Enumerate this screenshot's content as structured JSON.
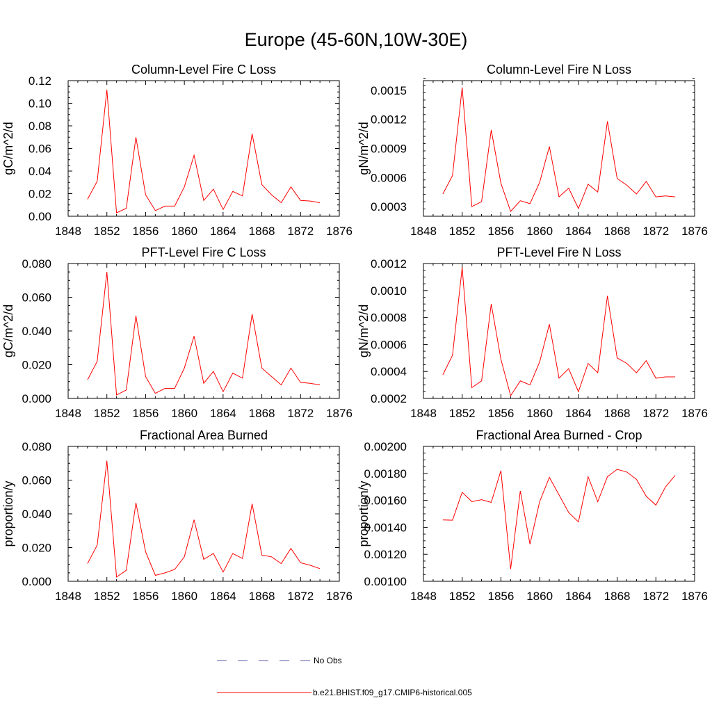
{
  "figure_title": "Europe (45-60N,10W-30E)",
  "line_color": "#ff0000",
  "obs_color": "#5a5aa8",
  "legend": [
    {
      "label": "No Obs",
      "style": "dashed",
      "color": "#5a5aa8"
    },
    {
      "label": "b.e21.BHIST.f09_g17.CMIP6-historical.005",
      "style": "solid",
      "color": "#ff0000"
    }
  ],
  "chart_data": [
    {
      "type": "line",
      "title": "Column-Level Fire C Loss",
      "ylabel": "gC/m^2/d",
      "xlim": [
        1848,
        1876
      ],
      "xticks": [
        1848,
        1852,
        1856,
        1860,
        1864,
        1868,
        1872,
        1876
      ],
      "xtick_labels": [
        "1848",
        "1852",
        "1856",
        "1860",
        "1864",
        "1868",
        "1872",
        "1876"
      ],
      "ylim": [
        0,
        0.12
      ],
      "yticks": [
        0,
        0.02,
        0.04,
        0.06,
        0.08,
        0.1,
        0.12
      ],
      "ytick_labels": [
        "0.00",
        "0.02",
        "0.04",
        "0.06",
        "0.08",
        "0.10",
        "0.12"
      ],
      "x": [
        1850,
        1851,
        1852,
        1853,
        1854,
        1855,
        1856,
        1857,
        1858,
        1859,
        1860,
        1861,
        1862,
        1863,
        1864,
        1865,
        1866,
        1867,
        1868,
        1869,
        1870,
        1871,
        1872,
        1873,
        1874
      ],
      "series": [
        {
          "name": "b.e21.BHIST.f09_g17.CMIP6-historical.005",
          "values": [
            0.015,
            0.031,
            0.112,
            0.003,
            0.007,
            0.07,
            0.019,
            0.005,
            0.009,
            0.009,
            0.026,
            0.054,
            0.014,
            0.024,
            0.006,
            0.022,
            0.018,
            0.073,
            0.028,
            0.019,
            0.012,
            0.026,
            0.014,
            0.0135,
            0.012
          ]
        }
      ]
    },
    {
      "type": "line",
      "title": "Column-Level Fire N Loss",
      "ylabel": "gN/m^2/d",
      "xlim": [
        1848,
        1876
      ],
      "xticks": [
        1848,
        1852,
        1856,
        1860,
        1864,
        1868,
        1872,
        1876
      ],
      "xtick_labels": [
        "1848",
        "1852",
        "1856",
        "1860",
        "1864",
        "1868",
        "1872",
        "1876"
      ],
      "ylim": [
        0.0002,
        0.0016
      ],
      "yticks": [
        0.0003,
        0.0006,
        0.0009,
        0.0012,
        0.0015
      ],
      "ytick_labels": [
        "0.0003",
        "0.0006",
        "0.0009",
        "0.0012",
        "0.0015"
      ],
      "x": [
        1850,
        1851,
        1852,
        1853,
        1854,
        1855,
        1856,
        1857,
        1858,
        1859,
        1860,
        1861,
        1862,
        1863,
        1864,
        1865,
        1866,
        1867,
        1868,
        1869,
        1870,
        1871,
        1872,
        1873,
        1874
      ],
      "series": [
        {
          "name": "b.e21.BHIST.f09_g17.CMIP6-historical.005",
          "values": [
            0.00043,
            0.00062,
            0.00153,
            0.0003,
            0.00035,
            0.00109,
            0.00054,
            0.00025,
            0.00036,
            0.00033,
            0.00055,
            0.00092,
            0.0004,
            0.00049,
            0.00028,
            0.00053,
            0.00045,
            0.00118,
            0.00059,
            0.00052,
            0.00043,
            0.00056,
            0.0004,
            0.00041,
            0.0004
          ]
        }
      ]
    },
    {
      "type": "line",
      "title": "PFT-Level Fire C Loss",
      "ylabel": "gC/m^2/d",
      "xlim": [
        1848,
        1876
      ],
      "xticks": [
        1848,
        1852,
        1856,
        1860,
        1864,
        1868,
        1872,
        1876
      ],
      "xtick_labels": [
        "1848",
        "1852",
        "1856",
        "1860",
        "1864",
        "1868",
        "1872",
        "1876"
      ],
      "ylim": [
        0,
        0.08
      ],
      "yticks": [
        0,
        0.02,
        0.04,
        0.06,
        0.08
      ],
      "ytick_labels": [
        "0.000",
        "0.020",
        "0.040",
        "0.060",
        "0.080"
      ],
      "x": [
        1850,
        1851,
        1852,
        1853,
        1854,
        1855,
        1856,
        1857,
        1858,
        1859,
        1860,
        1861,
        1862,
        1863,
        1864,
        1865,
        1866,
        1867,
        1868,
        1869,
        1870,
        1871,
        1872,
        1873,
        1874
      ],
      "series": [
        {
          "name": "b.e21.BHIST.f09_g17.CMIP6-historical.005",
          "values": [
            0.011,
            0.022,
            0.075,
            0.002,
            0.005,
            0.049,
            0.013,
            0.003,
            0.006,
            0.006,
            0.018,
            0.037,
            0.009,
            0.016,
            0.004,
            0.015,
            0.012,
            0.05,
            0.018,
            0.013,
            0.008,
            0.018,
            0.0095,
            0.009,
            0.008
          ]
        }
      ]
    },
    {
      "type": "line",
      "title": "PFT-Level Fire N Loss",
      "ylabel": "gN/m^2/d",
      "xlim": [
        1848,
        1876
      ],
      "xticks": [
        1848,
        1852,
        1856,
        1860,
        1864,
        1868,
        1872,
        1876
      ],
      "xtick_labels": [
        "1848",
        "1852",
        "1856",
        "1860",
        "1864",
        "1868",
        "1872",
        "1876"
      ],
      "ylim": [
        0.0002,
        0.0012
      ],
      "yticks": [
        0.0002,
        0.0004,
        0.0006,
        0.0008,
        0.001,
        0.0012
      ],
      "ytick_labels": [
        "0.0002",
        "0.0004",
        "0.0006",
        "0.0008",
        "0.0010",
        "0.0012"
      ],
      "x": [
        1850,
        1851,
        1852,
        1853,
        1854,
        1855,
        1856,
        1857,
        1858,
        1859,
        1860,
        1861,
        1862,
        1863,
        1864,
        1865,
        1866,
        1867,
        1868,
        1869,
        1870,
        1871,
        1872,
        1873,
        1874
      ],
      "series": [
        {
          "name": "b.e21.BHIST.f09_g17.CMIP6-historical.005",
          "values": [
            0.000375,
            0.00052,
            0.00117,
            0.00028,
            0.00033,
            0.0009,
            0.00049,
            0.00022,
            0.00033,
            0.0003,
            0.00047,
            0.00075,
            0.00035,
            0.00042,
            0.00025,
            0.00046,
            0.00039,
            0.00096,
            0.0005,
            0.00046,
            0.00039,
            0.00048,
            0.00035,
            0.00036,
            0.00036
          ]
        }
      ]
    },
    {
      "type": "line",
      "title": "Fractional Area Burned",
      "ylabel": "proportion/y",
      "xlim": [
        1848,
        1876
      ],
      "xticks": [
        1848,
        1852,
        1856,
        1860,
        1864,
        1868,
        1872,
        1876
      ],
      "xtick_labels": [
        "1848",
        "1852",
        "1856",
        "1860",
        "1864",
        "1868",
        "1872",
        "1876"
      ],
      "ylim": [
        0,
        0.08
      ],
      "yticks": [
        0,
        0.02,
        0.04,
        0.06,
        0.08
      ],
      "ytick_labels": [
        "0.000",
        "0.020",
        "0.040",
        "0.060",
        "0.080"
      ],
      "x": [
        1850,
        1851,
        1852,
        1853,
        1854,
        1855,
        1856,
        1857,
        1858,
        1859,
        1860,
        1861,
        1862,
        1863,
        1864,
        1865,
        1866,
        1867,
        1868,
        1869,
        1870,
        1871,
        1872,
        1873,
        1874
      ],
      "series": [
        {
          "name": "b.e21.BHIST.f09_g17.CMIP6-historical.005",
          "values": [
            0.0105,
            0.0215,
            0.0715,
            0.0025,
            0.0065,
            0.0465,
            0.0175,
            0.0035,
            0.005,
            0.007,
            0.0145,
            0.0365,
            0.013,
            0.0165,
            0.0055,
            0.0165,
            0.0135,
            0.046,
            0.0155,
            0.0145,
            0.0105,
            0.0195,
            0.011,
            0.0095,
            0.0075
          ]
        }
      ]
    },
    {
      "type": "line",
      "title": "Fractional Area Burned - Crop",
      "ylabel": "proportion/y",
      "xlim": [
        1848,
        1876
      ],
      "xticks": [
        1848,
        1852,
        1856,
        1860,
        1864,
        1868,
        1872,
        1876
      ],
      "xtick_labels": [
        "1848",
        "1852",
        "1856",
        "1860",
        "1864",
        "1868",
        "1872",
        "1876"
      ],
      "ylim": [
        0.001,
        0.002
      ],
      "yticks": [
        0.001,
        0.0012,
        0.0014,
        0.0016,
        0.0018,
        0.002
      ],
      "ytick_labels": [
        "0.00100",
        "0.00120",
        "0.00140",
        "0.00160",
        "0.00180",
        "0.00200"
      ],
      "x": [
        1850,
        1851,
        1852,
        1853,
        1854,
        1855,
        1856,
        1857,
        1858,
        1859,
        1860,
        1861,
        1862,
        1863,
        1864,
        1865,
        1866,
        1867,
        1868,
        1869,
        1870,
        1871,
        1872,
        1873,
        1874
      ],
      "series": [
        {
          "name": "b.e21.BHIST.f09_g17.CMIP6-historical.005",
          "values": [
            0.001455,
            0.001453,
            0.00166,
            0.00159,
            0.001605,
            0.001585,
            0.00182,
            0.00109,
            0.00167,
            0.001275,
            0.00159,
            0.00177,
            0.00164,
            0.00151,
            0.00144,
            0.001775,
            0.00159,
            0.001775,
            0.00183,
            0.00181,
            0.001755,
            0.00163,
            0.001565,
            0.0017,
            0.001785
          ]
        }
      ]
    }
  ]
}
